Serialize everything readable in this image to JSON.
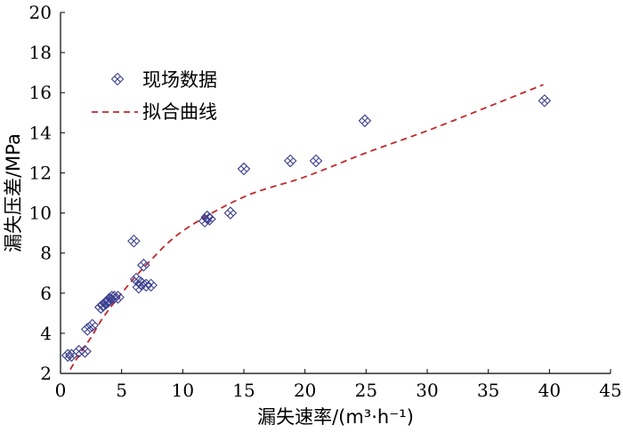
{
  "chart_data": {
    "type": "scatter",
    "xlabel": "漏失速率/(m³·h⁻¹)",
    "ylabel": "漏失压差/MPa",
    "xlim": [
      0,
      45
    ],
    "ylim": [
      2,
      20
    ],
    "xticks": [
      "0",
      "5",
      "10",
      "15",
      "20",
      "25",
      "30",
      "35",
      "40",
      "45"
    ],
    "yticks": [
      "2",
      "4",
      "6",
      "8",
      "10",
      "12",
      "14",
      "16",
      "18",
      "20"
    ],
    "legend_position": "top-left",
    "grid": false,
    "series": [
      {
        "name": "现场数据",
        "type": "scatter",
        "marker": "x-diamond",
        "color": "#3b3f8f",
        "points": [
          [
            0.6,
            2.9
          ],
          [
            0.9,
            2.9
          ],
          [
            1.5,
            3.1
          ],
          [
            2.0,
            3.1
          ],
          [
            2.2,
            4.2
          ],
          [
            2.6,
            4.4
          ],
          [
            3.3,
            5.3
          ],
          [
            3.5,
            5.4
          ],
          [
            3.7,
            5.5
          ],
          [
            3.9,
            5.6
          ],
          [
            4.0,
            5.7
          ],
          [
            4.2,
            5.8
          ],
          [
            4.4,
            5.8
          ],
          [
            4.7,
            5.8
          ],
          [
            6.0,
            8.6
          ],
          [
            6.2,
            6.7
          ],
          [
            6.4,
            6.3
          ],
          [
            6.6,
            6.5
          ],
          [
            6.8,
            7.4
          ],
          [
            7.0,
            6.4
          ],
          [
            7.4,
            6.4
          ],
          [
            11.8,
            9.6
          ],
          [
            12.0,
            9.8
          ],
          [
            12.2,
            9.7
          ],
          [
            13.9,
            10.0
          ],
          [
            15.0,
            12.2
          ],
          [
            18.8,
            12.6
          ],
          [
            20.9,
            12.6
          ],
          [
            24.9,
            14.6
          ],
          [
            39.6,
            15.6
          ]
        ]
      },
      {
        "name": "拟合曲线",
        "type": "line",
        "style": "dashed",
        "color": "#c0282d",
        "points": [
          [
            0.8,
            2.2
          ],
          [
            1.5,
            2.9
          ],
          [
            2.5,
            3.8
          ],
          [
            3.5,
            4.8
          ],
          [
            5,
            6.0
          ],
          [
            7,
            7.4
          ],
          [
            10,
            9.1
          ],
          [
            15,
            10.8
          ],
          [
            20,
            11.8
          ],
          [
            25,
            13.0
          ],
          [
            30,
            14.1
          ],
          [
            35,
            15.3
          ],
          [
            39.5,
            16.4
          ]
        ]
      }
    ]
  }
}
